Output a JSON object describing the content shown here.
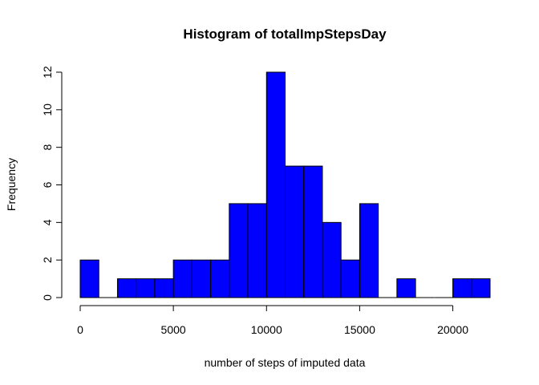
{
  "chart_data": {
    "type": "bar",
    "title": "Histogram of totalImpStepsDay",
    "xlabel": "number of steps of imputed data",
    "ylabel": "Frequency",
    "bar_color": "#0000ff",
    "bin_width": 1000,
    "x": [
      0,
      1000,
      2000,
      3000,
      4000,
      5000,
      6000,
      7000,
      8000,
      9000,
      10000,
      11000,
      12000,
      13000,
      14000,
      15000,
      16000,
      17000,
      18000,
      19000,
      20000,
      21000
    ],
    "values": [
      2,
      0,
      1,
      1,
      1,
      2,
      2,
      2,
      5,
      5,
      12,
      7,
      7,
      4,
      2,
      5,
      0,
      1,
      0,
      0,
      1,
      1
    ],
    "xlim": [
      0,
      22000
    ],
    "ylim": [
      0,
      12
    ],
    "x_ticks": [
      0,
      5000,
      10000,
      15000,
      20000
    ],
    "y_ticks": [
      0,
      2,
      4,
      6,
      8,
      10,
      12
    ],
    "grid": false,
    "legend": "none"
  }
}
